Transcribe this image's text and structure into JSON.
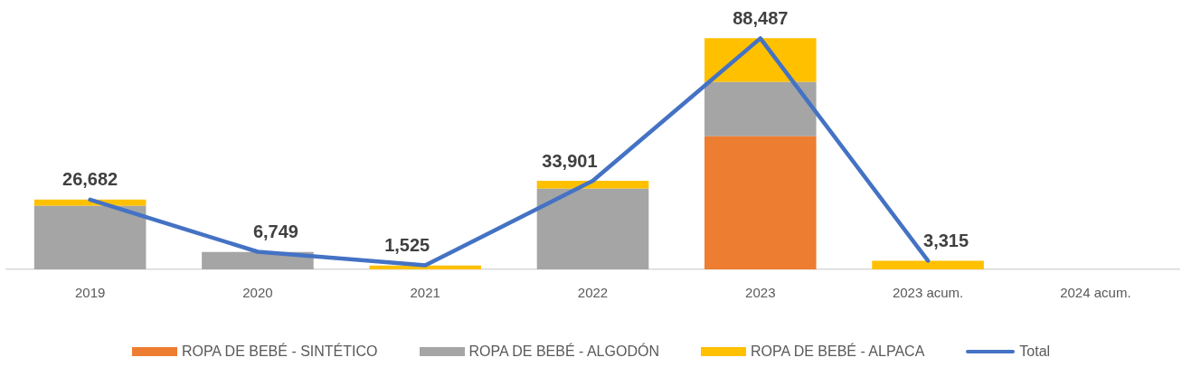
{
  "chart_data": {
    "type": "bar",
    "stacked": true,
    "categories": [
      "2019",
      "2020",
      "2021",
      "2022",
      "2023",
      "2023 acum.",
      "2024 acum."
    ],
    "series": [
      {
        "name": "ROPA DE BEBÉ - SINTÉTICO",
        "color": "#ed7d31",
        "values": [
          null,
          null,
          null,
          null,
          51000,
          null,
          null
        ]
      },
      {
        "name": "ROPA DE BEBÉ - ALGODÓN",
        "color": "#a5a5a5",
        "values": [
          24300,
          6700,
          null,
          30900,
          20700,
          null,
          null
        ]
      },
      {
        "name": "ROPA DE BEBÉ - ALPACA",
        "color": "#ffc000",
        "values": [
          2400,
          null,
          1500,
          3000,
          16800,
          3300,
          null
        ]
      },
      {
        "name": "Total",
        "type": "line",
        "color": "#4472c4",
        "values": [
          26682,
          6749,
          1525,
          33901,
          88487,
          3315,
          null
        ],
        "value_labels": [
          "26,682",
          "6,749",
          "1,525",
          "33,901",
          "88,487",
          "3,315",
          null
        ]
      }
    ],
    "tick_labels": "x",
    "legend": "bottom",
    "marker": "none",
    "grid": false
  }
}
